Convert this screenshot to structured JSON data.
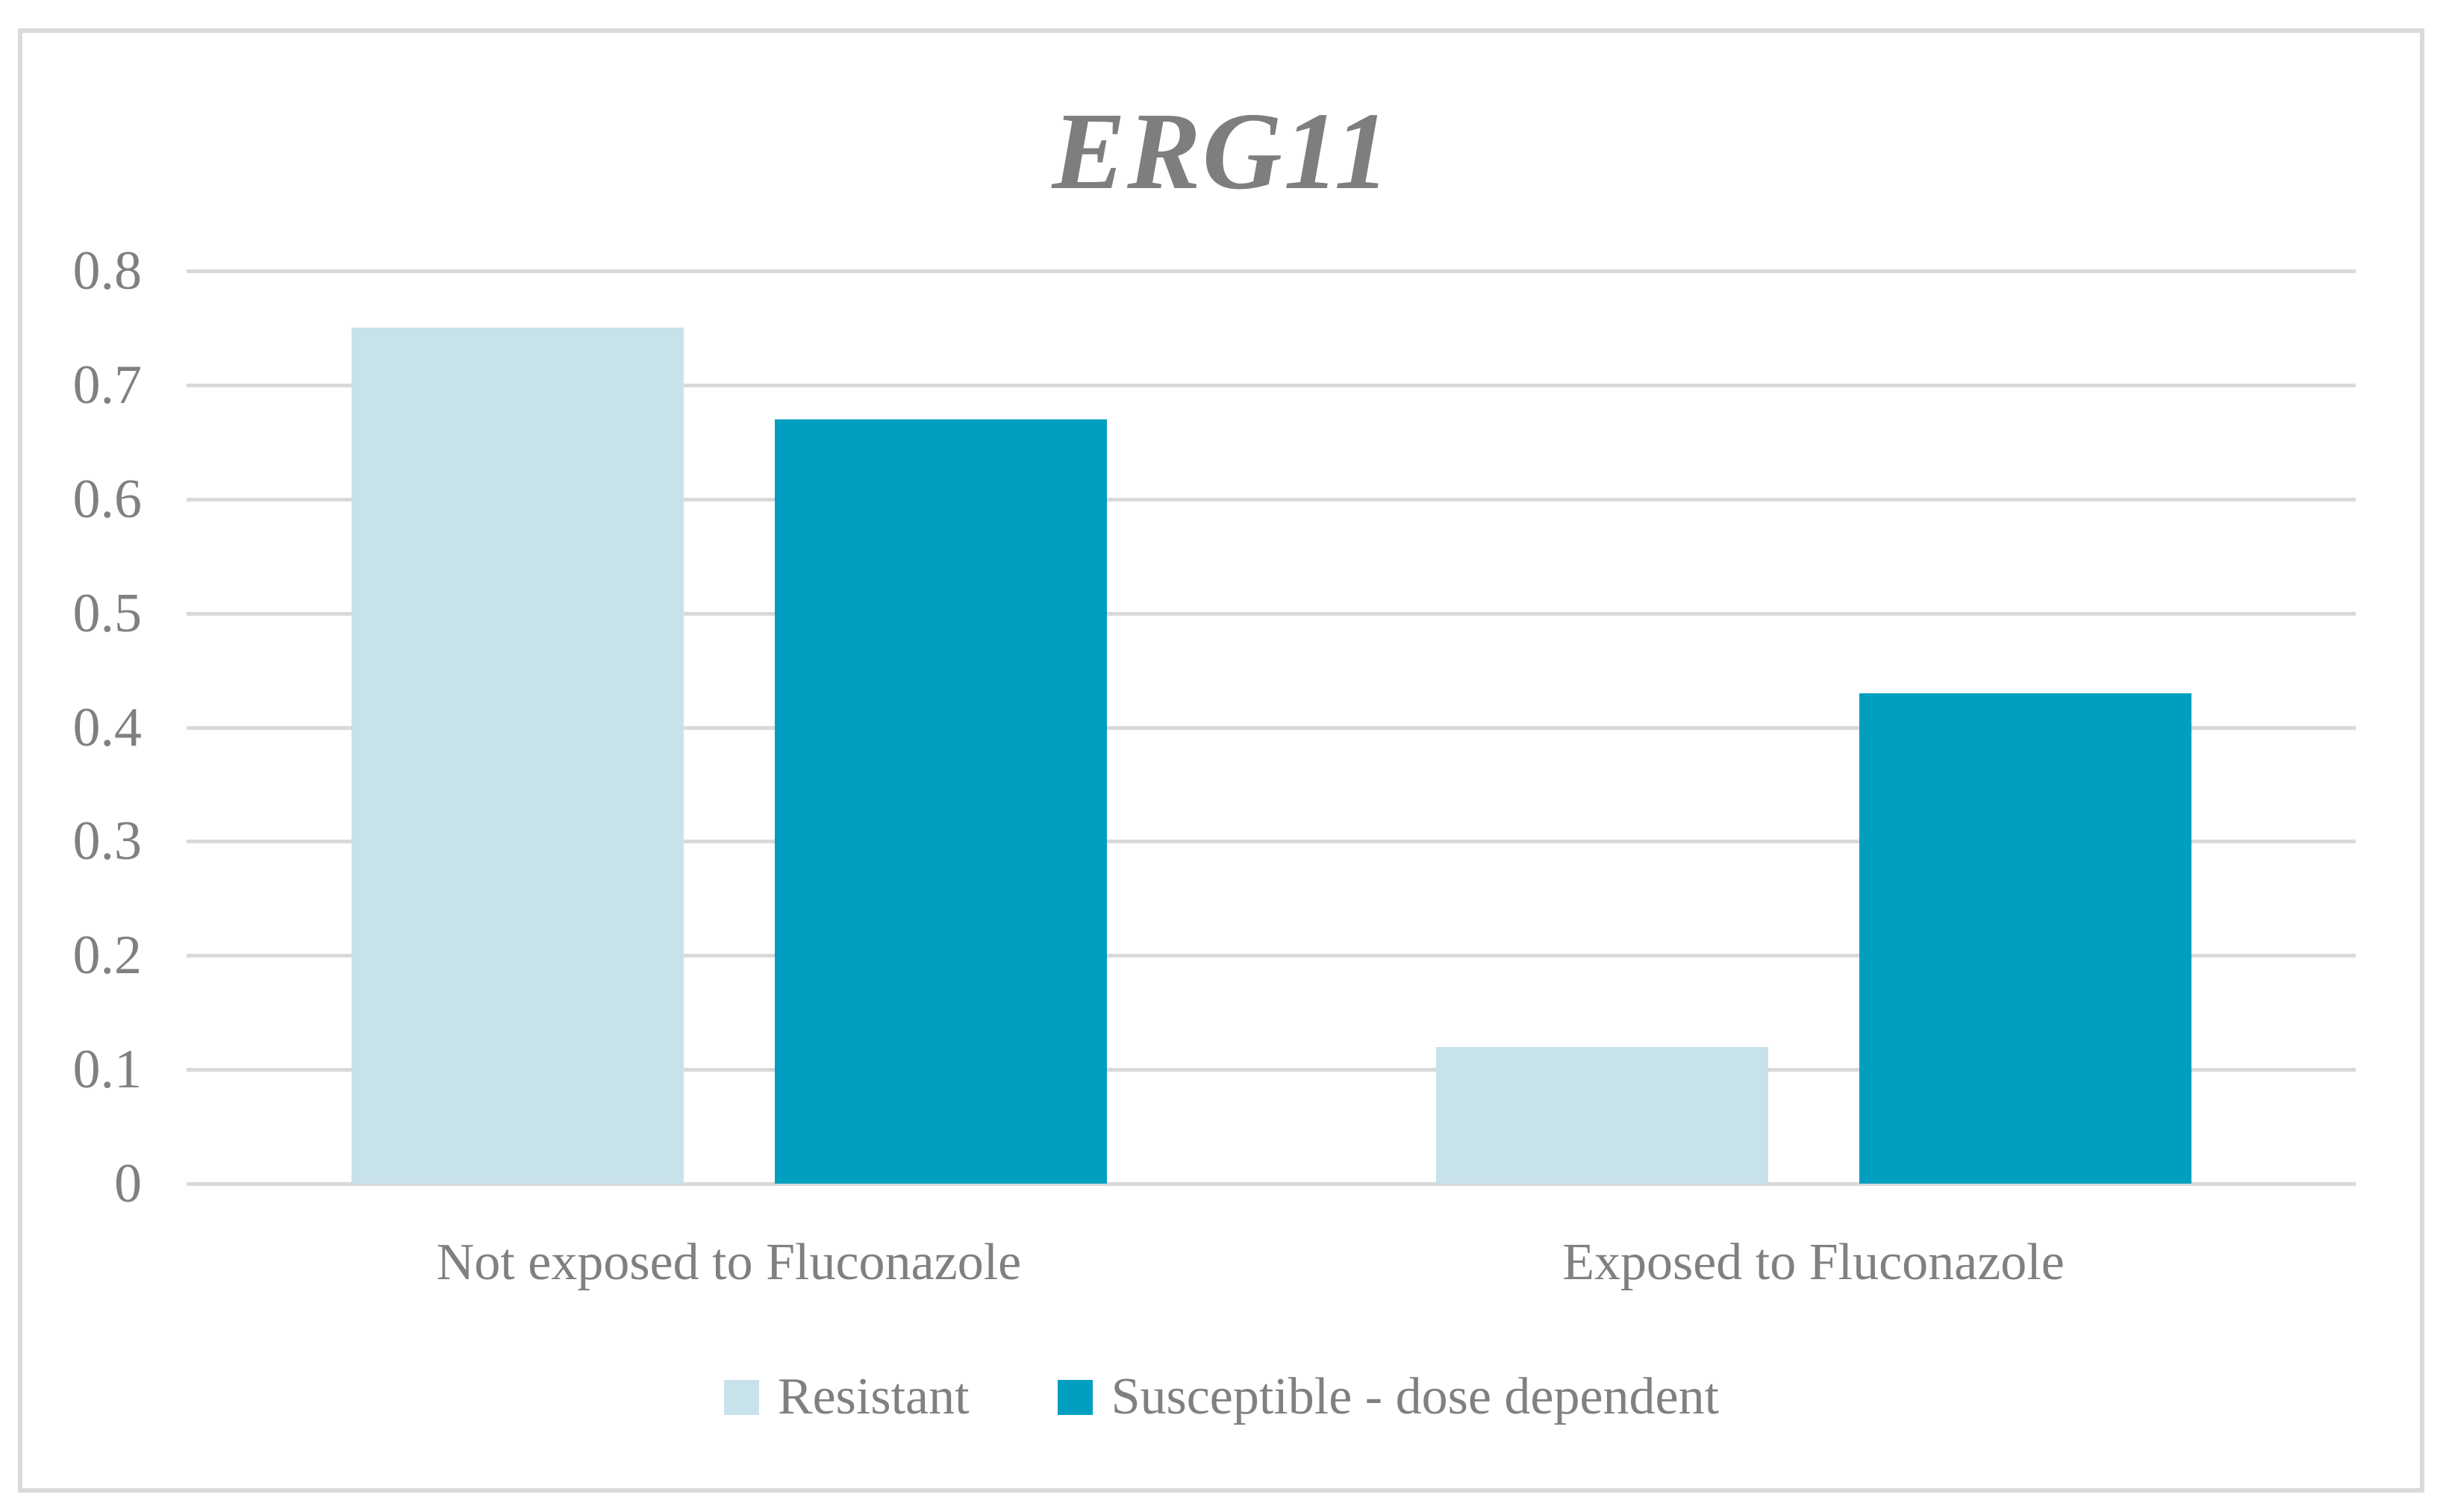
{
  "chart_data": {
    "type": "bar",
    "title": "ERG11",
    "categories": [
      "Not exposed to Fluconazole",
      "Exposed to Fluconazole"
    ],
    "series": [
      {
        "name": "Resistant",
        "color": "#C8E2EC",
        "values": [
          0.75,
          0.12
        ]
      },
      {
        "name": "Susceptible - dose dependent",
        "color": "#009FC0",
        "values": [
          0.67,
          0.43
        ]
      }
    ],
    "ylim": [
      0,
      0.8
    ],
    "ytick_step": 0.1,
    "yticks": [
      "0",
      "0.1",
      "0.2",
      "0.3",
      "0.4",
      "0.5",
      "0.6",
      "0.7",
      "0.8"
    ],
    "grid": "horizontal-gridlines",
    "legend_position": "bottom",
    "colors": {
      "gridline": "#D9D9D9",
      "frame_border": "#DADADA",
      "text": "#808080",
      "title_text": "#7E7E7E"
    }
  }
}
